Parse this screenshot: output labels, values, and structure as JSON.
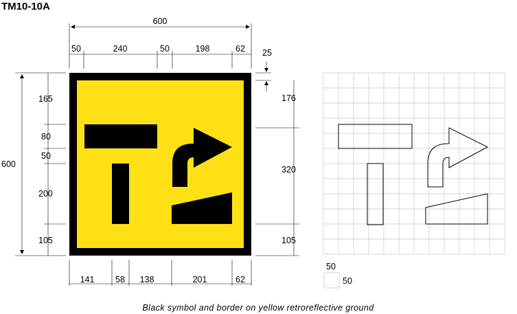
{
  "title": "TM10-10A",
  "caption": "Black symbol and border on yellow retroreflective ground",
  "colors": {
    "ground": "#ffe014",
    "symbol": "#000000",
    "grid": "#c8c8c8"
  },
  "dimensions": {
    "overall_width": "600",
    "top": [
      "50",
      "240",
      "50",
      "198",
      "62"
    ],
    "border": "25",
    "bottom": [
      "141",
      "58",
      "138",
      "201",
      "62"
    ],
    "overall_height": "600",
    "left": [
      "165",
      "80",
      "50",
      "200",
      "105"
    ],
    "right": [
      "176",
      "320",
      "105"
    ]
  },
  "grid_legend": {
    "horizontal": "50",
    "vertical": "50"
  }
}
